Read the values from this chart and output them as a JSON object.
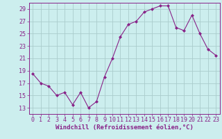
{
  "x": [
    0,
    1,
    2,
    3,
    4,
    5,
    6,
    7,
    8,
    9,
    10,
    11,
    12,
    13,
    14,
    15,
    16,
    17,
    18,
    19,
    20,
    21,
    22,
    23
  ],
  "y": [
    18.5,
    17.0,
    16.5,
    15.0,
    15.5,
    13.5,
    15.5,
    13.0,
    14.0,
    18.0,
    21.0,
    24.5,
    26.5,
    27.0,
    28.5,
    29.0,
    29.5,
    29.5,
    26.0,
    25.5,
    28.0,
    25.0,
    22.5,
    21.5
  ],
  "line_color": "#882288",
  "marker": "D",
  "marker_size": 2,
  "bg_color": "#cceeee",
  "grid_color": "#aacccc",
  "xlabel": "Windchill (Refroidissement éolien,°C)",
  "xlabel_fontsize": 6.5,
  "tick_fontsize": 6,
  "ylim": [
    12,
    30
  ],
  "yticks": [
    13,
    15,
    17,
    19,
    21,
    23,
    25,
    27,
    29
  ],
  "xlim": [
    -0.5,
    23.5
  ],
  "xticks": [
    0,
    1,
    2,
    3,
    4,
    5,
    6,
    7,
    8,
    9,
    10,
    11,
    12,
    13,
    14,
    15,
    16,
    17,
    18,
    19,
    20,
    21,
    22,
    23
  ]
}
